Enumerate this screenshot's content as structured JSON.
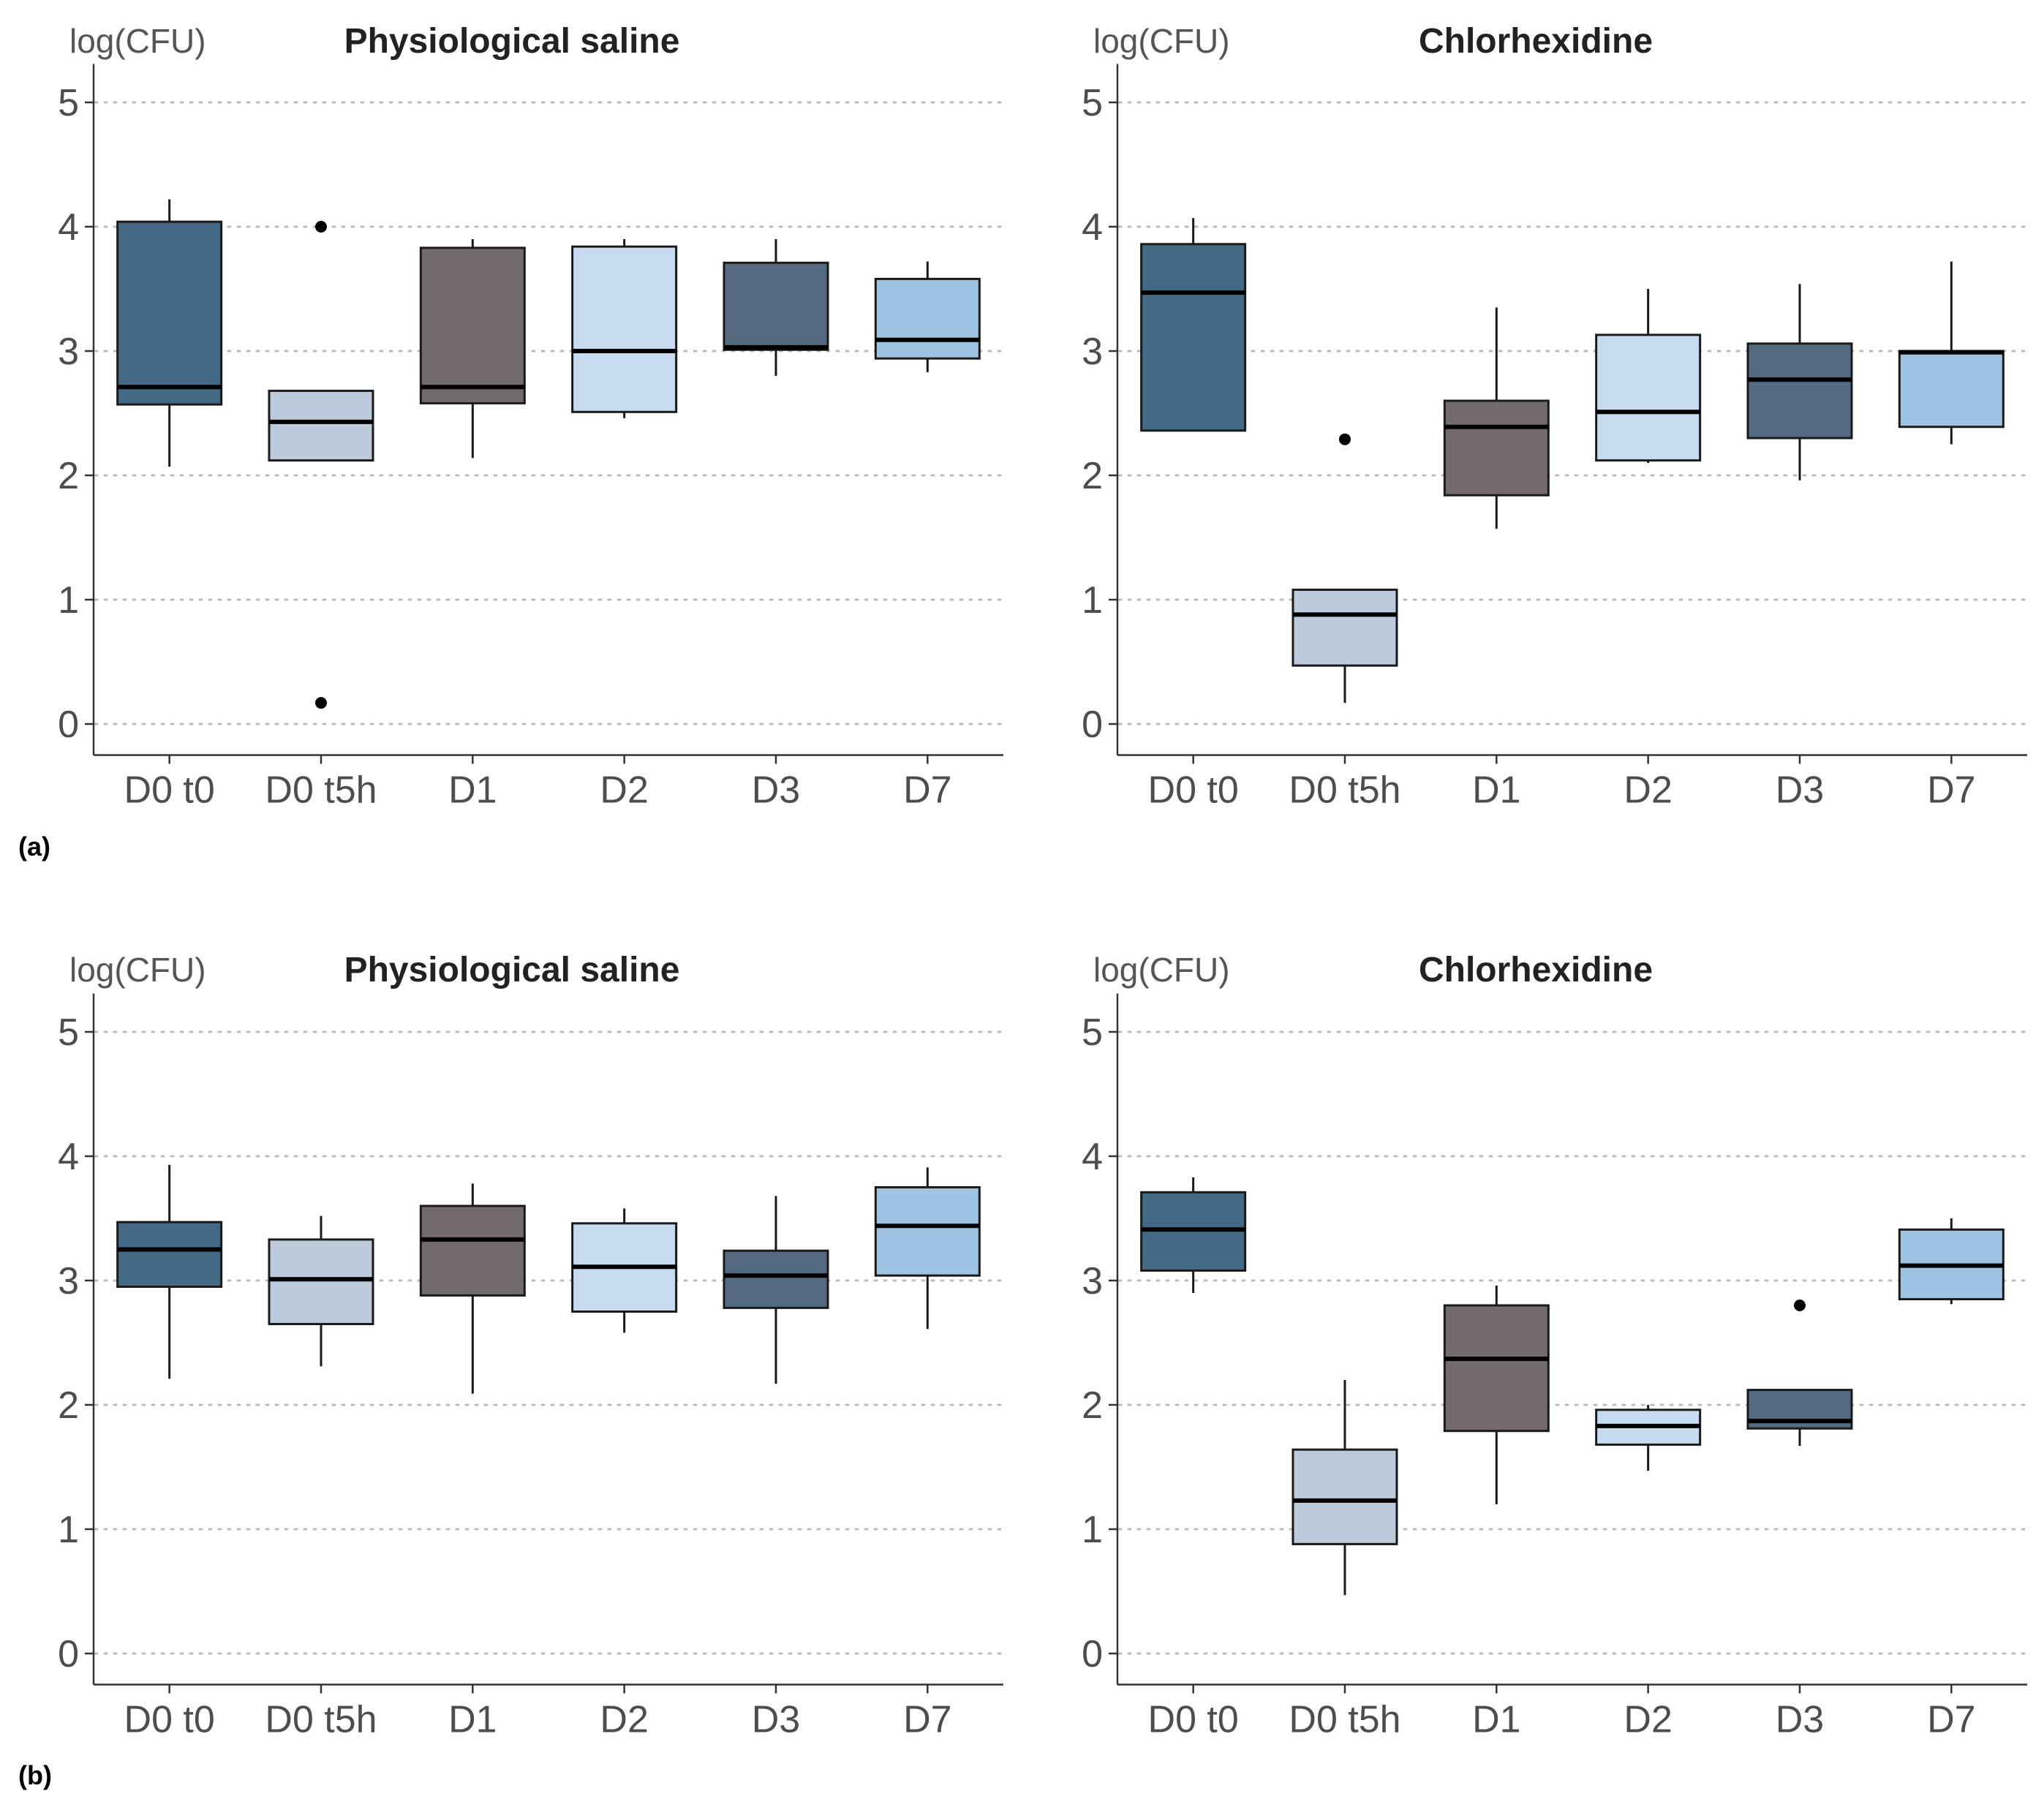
{
  "panel_labels": [
    "(a)",
    "(b)"
  ],
  "colors": {
    "D0 t0": "#436984",
    "D0 t5h": "#bdcadb",
    "D1": "#726a6b",
    "D2": "#c6dbef",
    "D3": "#536a80",
    "D7": "#9ec2e2",
    "gridline": "#bbbbbb",
    "axis": "#333333"
  },
  "chart_data": [
    {
      "type": "boxplot",
      "panel": "(a)",
      "title": "Physiological saline",
      "ylabel": "log(CFU)",
      "xlabel": "",
      "ylim": [
        -0.25,
        5.25
      ],
      "yticks": [
        0,
        1,
        2,
        3,
        4,
        5
      ],
      "grid": "horizontal dotted",
      "categories": [
        "D0 t0",
        "D0 t5h",
        "D1",
        "D2",
        "D3",
        "D7"
      ],
      "boxes": [
        {
          "category": "D0 t0",
          "whisker_low": 2.07,
          "q1": 2.57,
          "median": 2.71,
          "q3": 4.04,
          "whisker_high": 4.22,
          "outliers": []
        },
        {
          "category": "D0 t5h",
          "whisker_low": 2.12,
          "q1": 2.12,
          "median": 2.43,
          "q3": 2.68,
          "whisker_high": 2.68,
          "outliers": [
            4.0,
            0.17
          ]
        },
        {
          "category": "D1",
          "whisker_low": 2.14,
          "q1": 2.58,
          "median": 2.71,
          "q3": 3.83,
          "whisker_high": 3.9,
          "outliers": []
        },
        {
          "category": "D2",
          "whisker_low": 2.46,
          "q1": 2.51,
          "median": 3.0,
          "q3": 3.84,
          "whisker_high": 3.9,
          "outliers": []
        },
        {
          "category": "D3",
          "whisker_low": 2.8,
          "q1": 3.01,
          "median": 3.03,
          "q3": 3.71,
          "whisker_high": 3.9,
          "outliers": []
        },
        {
          "category": "D7",
          "whisker_low": 2.83,
          "q1": 2.94,
          "median": 3.09,
          "q3": 3.58,
          "whisker_high": 3.72,
          "outliers": []
        }
      ]
    },
    {
      "type": "boxplot",
      "panel": "(a)",
      "title": "Chlorhexidine",
      "ylabel": "log(CFU)",
      "xlabel": "",
      "ylim": [
        -0.25,
        5.25
      ],
      "yticks": [
        0,
        1,
        2,
        3,
        4,
        5
      ],
      "grid": "horizontal dotted",
      "categories": [
        "D0 t0",
        "D0 t5h",
        "D1",
        "D2",
        "D3",
        "D7"
      ],
      "boxes": [
        {
          "category": "D0 t0",
          "whisker_low": 2.36,
          "q1": 2.36,
          "median": 3.47,
          "q3": 3.86,
          "whisker_high": 4.07,
          "outliers": []
        },
        {
          "category": "D0 t5h",
          "whisker_low": 0.17,
          "q1": 0.47,
          "median": 0.88,
          "q3": 1.08,
          "whisker_high": 1.08,
          "outliers": [
            2.29
          ]
        },
        {
          "category": "D1",
          "whisker_low": 1.57,
          "q1": 1.84,
          "median": 2.39,
          "q3": 2.6,
          "whisker_high": 3.35,
          "outliers": []
        },
        {
          "category": "D2",
          "whisker_low": 2.1,
          "q1": 2.12,
          "median": 2.51,
          "q3": 3.13,
          "whisker_high": 3.5,
          "outliers": []
        },
        {
          "category": "D3",
          "whisker_low": 1.96,
          "q1": 2.3,
          "median": 2.77,
          "q3": 3.06,
          "whisker_high": 3.54,
          "outliers": []
        },
        {
          "category": "D7",
          "whisker_low": 2.25,
          "q1": 2.39,
          "median": 2.99,
          "q3": 3.0,
          "whisker_high": 3.72,
          "outliers": []
        }
      ]
    },
    {
      "type": "boxplot",
      "panel": "(b)",
      "title": "Physiological saline",
      "ylabel": "log(CFU)",
      "xlabel": "",
      "ylim": [
        -0.25,
        5.25
      ],
      "yticks": [
        0,
        1,
        2,
        3,
        4,
        5
      ],
      "grid": "horizontal dotted",
      "categories": [
        "D0 t0",
        "D0 t5h",
        "D1",
        "D2",
        "D3",
        "D7"
      ],
      "boxes": [
        {
          "category": "D0 t0",
          "whisker_low": 2.21,
          "q1": 2.95,
          "median": 3.25,
          "q3": 3.47,
          "whisker_high": 3.93,
          "outliers": []
        },
        {
          "category": "D0 t5h",
          "whisker_low": 2.31,
          "q1": 2.65,
          "median": 3.01,
          "q3": 3.33,
          "whisker_high": 3.52,
          "outliers": []
        },
        {
          "category": "D1",
          "whisker_low": 2.09,
          "q1": 2.88,
          "median": 3.33,
          "q3": 3.6,
          "whisker_high": 3.78,
          "outliers": []
        },
        {
          "category": "D2",
          "whisker_low": 2.58,
          "q1": 2.75,
          "median": 3.11,
          "q3": 3.46,
          "whisker_high": 3.58,
          "outliers": []
        },
        {
          "category": "D3",
          "whisker_low": 2.17,
          "q1": 2.78,
          "median": 3.04,
          "q3": 3.24,
          "whisker_high": 3.68,
          "outliers": []
        },
        {
          "category": "D7",
          "whisker_low": 2.61,
          "q1": 3.04,
          "median": 3.44,
          "q3": 3.75,
          "whisker_high": 3.91,
          "outliers": []
        }
      ]
    },
    {
      "type": "boxplot",
      "panel": "(b)",
      "title": "Chlorhexidine",
      "ylabel": "log(CFU)",
      "xlabel": "",
      "ylim": [
        -0.25,
        5.25
      ],
      "yticks": [
        0,
        1,
        2,
        3,
        4,
        5
      ],
      "grid": "horizontal dotted",
      "categories": [
        "D0 t0",
        "D0 t5h",
        "D1",
        "D2",
        "D3",
        "D7"
      ],
      "boxes": [
        {
          "category": "D0 t0",
          "whisker_low": 2.9,
          "q1": 3.08,
          "median": 3.41,
          "q3": 3.71,
          "whisker_high": 3.83,
          "outliers": []
        },
        {
          "category": "D0 t5h",
          "whisker_low": 0.47,
          "q1": 0.88,
          "median": 1.23,
          "q3": 1.64,
          "whisker_high": 2.2,
          "outliers": []
        },
        {
          "category": "D1",
          "whisker_low": 1.2,
          "q1": 1.79,
          "median": 2.37,
          "q3": 2.8,
          "whisker_high": 2.96,
          "outliers": []
        },
        {
          "category": "D2",
          "whisker_low": 1.47,
          "q1": 1.68,
          "median": 1.83,
          "q3": 1.96,
          "whisker_high": 2.0,
          "outliers": []
        },
        {
          "category": "D3",
          "whisker_low": 1.67,
          "q1": 1.81,
          "median": 1.87,
          "q3": 2.12,
          "whisker_high": 2.12,
          "outliers": [
            2.8
          ]
        },
        {
          "category": "D7",
          "whisker_low": 2.81,
          "q1": 2.85,
          "median": 3.12,
          "q3": 3.41,
          "whisker_high": 3.5,
          "outliers": []
        }
      ]
    }
  ]
}
